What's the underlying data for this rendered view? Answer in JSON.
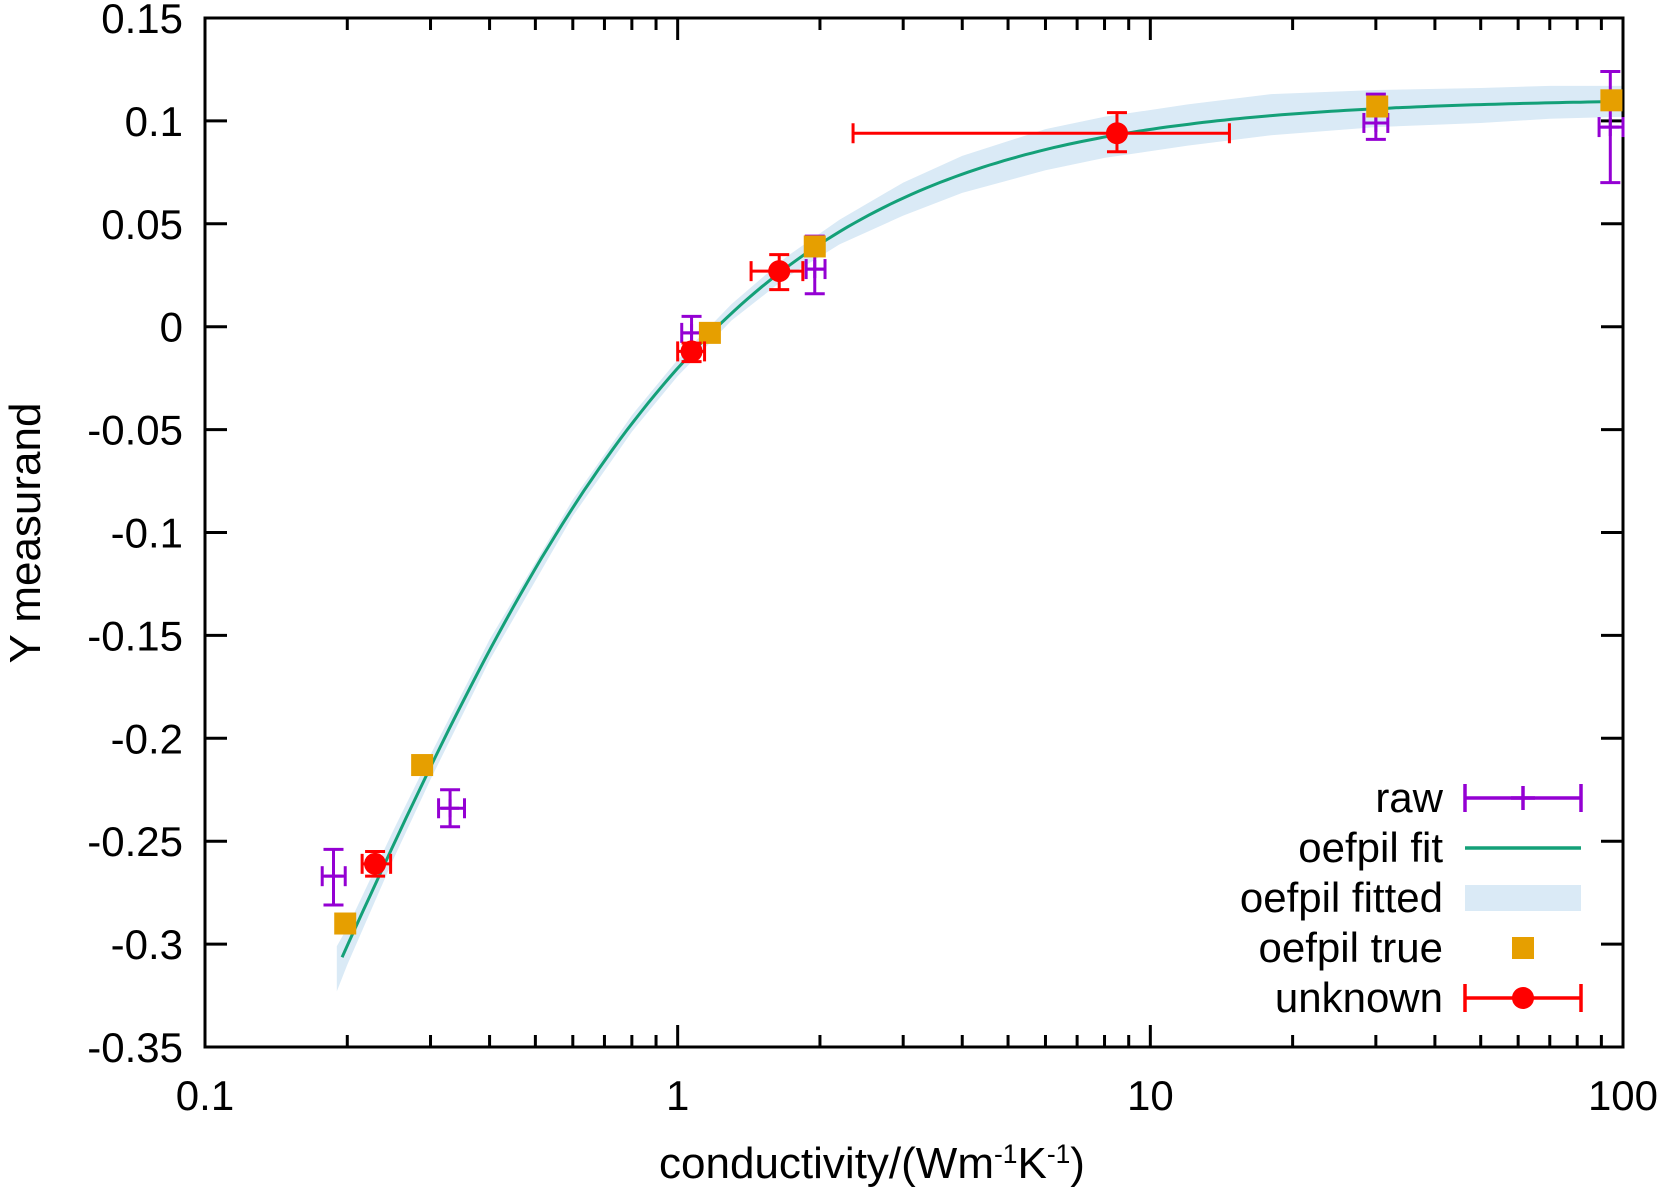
{
  "figure": {
    "ylabel": "Y measurand",
    "xlabel_text": "conductivity/(Wm-1K-1)",
    "xlabel_parts": [
      {
        "t": "conductivity/(Wm"
      },
      {
        "t": "-1",
        "sup": true
      },
      {
        "t": "K"
      },
      {
        "t": "-1",
        "sup": true
      },
      {
        "t": ")"
      }
    ],
    "background_color": "#ffffff",
    "border_color": "#000000"
  },
  "legend": {
    "items": [
      {
        "key": "raw",
        "label": "raw",
        "sample": "errorbar-plus",
        "color": "#9400d3"
      },
      {
        "key": "fit",
        "label": "oefpil fit",
        "sample": "line",
        "color": "#14a078"
      },
      {
        "key": "band",
        "label": "oefpil fitted",
        "sample": "band",
        "color": "#daeaf6"
      },
      {
        "key": "true",
        "label": "oefpil true",
        "sample": "square",
        "color": "#e69f00"
      },
      {
        "key": "unknown",
        "label": "unknown",
        "sample": "errorbar-circle",
        "color": "#ff0000"
      }
    ]
  },
  "chart_data": {
    "type": "scatter",
    "title": "",
    "x_axis": {
      "label": "conductivity/(Wm^-1 K^-1)",
      "scale": "log",
      "range": [
        0.1,
        100
      ],
      "major_ticks": [
        0.1,
        1,
        10,
        100
      ],
      "tick_labels": [
        "0.1",
        "1",
        "10",
        "100"
      ]
    },
    "y_axis": {
      "label": "Y measurand",
      "scale": "linear",
      "range": [
        -0.35,
        0.15
      ],
      "tick_step": 0.05,
      "tick_labels": [
        "0.15",
        "0.1",
        "0.05",
        "0",
        "-0.05",
        "-0.1",
        "-0.15",
        "-0.2",
        "-0.25",
        "-0.3",
        "-0.35"
      ]
    },
    "grid": false,
    "legend_position": "bottom-right-inside",
    "series": [
      {
        "name": "raw",
        "color": "#9400d3",
        "marker": "plus",
        "points": [
          {
            "x": 0.187,
            "y": -0.267,
            "xlo": 0.177,
            "xhi": 0.198,
            "ylo": -0.281,
            "yhi": -0.254
          },
          {
            "x": 0.33,
            "y": -0.234,
            "xlo": 0.312,
            "xhi": 0.354,
            "ylo": -0.243,
            "yhi": -0.225
          },
          {
            "x": 1.07,
            "y": -0.003,
            "xlo": 1.02,
            "xhi": 1.12,
            "ylo": -0.011,
            "yhi": 0.005
          },
          {
            "x": 1.95,
            "y": 0.028,
            "xlo": 1.87,
            "xhi": 2.05,
            "ylo": 0.016,
            "yhi": 0.044
          },
          {
            "x": 30.0,
            "y": 0.099,
            "xlo": 28.3,
            "xhi": 31.8,
            "ylo": 0.091,
            "yhi": 0.113
          },
          {
            "x": 94.0,
            "y": 0.097,
            "xlo": 89.0,
            "xhi": 100.0,
            "ylo": 0.07,
            "yhi": 0.124
          }
        ]
      },
      {
        "name": "oefpil true",
        "color": "#e69f00",
        "marker": "square",
        "points": [
          {
            "x": 0.198,
            "y": -0.29
          },
          {
            "x": 0.288,
            "y": -0.213
          },
          {
            "x": 1.17,
            "y": -0.003
          },
          {
            "x": 1.95,
            "y": 0.039
          },
          {
            "x": 30.2,
            "y": 0.107
          },
          {
            "x": 94.5,
            "y": 0.11
          }
        ]
      },
      {
        "name": "unknown",
        "color": "#ff0000",
        "marker": "circle",
        "points": [
          {
            "x": 0.229,
            "y": -0.261,
            "xlo": 0.215,
            "xhi": 0.247,
            "ylo": -0.267,
            "yhi": -0.255
          },
          {
            "x": 1.07,
            "y": -0.012,
            "xlo": 1.0,
            "xhi": 1.14,
            "ylo": -0.017,
            "yhi": -0.008
          },
          {
            "x": 1.64,
            "y": 0.027,
            "xlo": 1.43,
            "xhi": 1.84,
            "ylo": 0.018,
            "yhi": 0.035
          },
          {
            "x": 8.5,
            "y": 0.094,
            "xlo": 2.35,
            "xhi": 14.7,
            "ylo": 0.085,
            "yhi": 0.104
          }
        ]
      }
    ],
    "fit_curve": {
      "name": "oefpil fit",
      "color": "#14a078",
      "form": "y = a - b/(x + c)",
      "a": 0.111,
      "b": 0.154,
      "c": 0.174,
      "x_start": 0.195,
      "x_end": 100
    },
    "confidence_band": {
      "name": "oefpil fitted",
      "color": "#daeaf6",
      "samples": [
        {
          "x": 0.19,
          "lo": -0.323,
          "hi": -0.301
        },
        {
          "x": 0.2,
          "lo": -0.31,
          "hi": -0.292
        },
        {
          "x": 0.25,
          "lo": -0.259,
          "hi": -0.245
        },
        {
          "x": 0.3,
          "lo": -0.22,
          "hi": -0.208
        },
        {
          "x": 0.4,
          "lo": -0.162,
          "hi": -0.152
        },
        {
          "x": 0.6,
          "lo": -0.092,
          "hi": -0.084
        },
        {
          "x": 0.8,
          "lo": -0.051,
          "hi": -0.043
        },
        {
          "x": 1.0,
          "lo": -0.024,
          "hi": -0.016
        },
        {
          "x": 1.3,
          "lo": 0.003,
          "hi": 0.011
        },
        {
          "x": 1.7,
          "lo": 0.024,
          "hi": 0.034
        },
        {
          "x": 2.2,
          "lo": 0.04,
          "hi": 0.052
        },
        {
          "x": 3.0,
          "lo": 0.054,
          "hi": 0.07
        },
        {
          "x": 4.0,
          "lo": 0.065,
          "hi": 0.083
        },
        {
          "x": 6.0,
          "lo": 0.076,
          "hi": 0.096
        },
        {
          "x": 8.0,
          "lo": 0.082,
          "hi": 0.102
        },
        {
          "x": 12.0,
          "lo": 0.088,
          "hi": 0.108
        },
        {
          "x": 18.0,
          "lo": 0.093,
          "hi": 0.113
        },
        {
          "x": 30.0,
          "lo": 0.097,
          "hi": 0.115
        },
        {
          "x": 50.0,
          "lo": 0.099,
          "hi": 0.116
        },
        {
          "x": 70.0,
          "lo": 0.101,
          "hi": 0.117
        },
        {
          "x": 100.0,
          "lo": 0.102,
          "hi": 0.117
        }
      ]
    }
  }
}
